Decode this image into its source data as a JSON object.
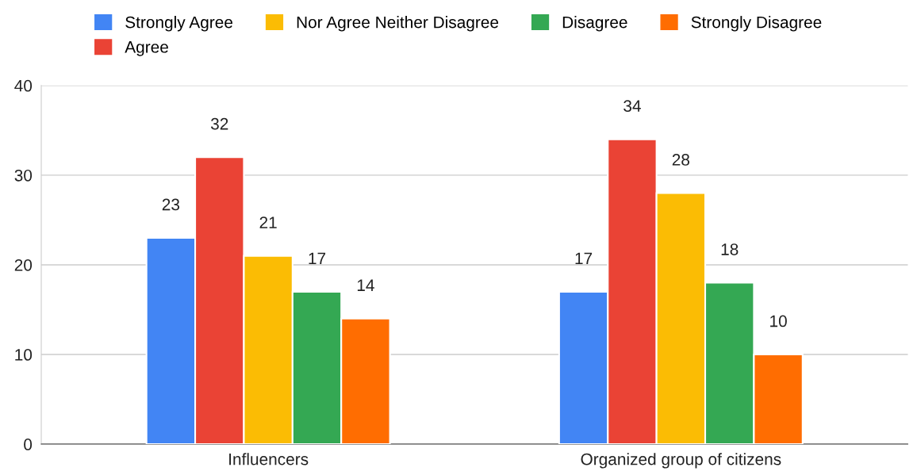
{
  "chart_data": {
    "type": "bar",
    "categories": [
      "Influencers",
      "Organized group of citizens"
    ],
    "series": [
      {
        "name": "Strongly Agree",
        "color": "#4285f4",
        "values": [
          23,
          17
        ]
      },
      {
        "name": "Agree",
        "color": "#ea4335",
        "values": [
          32,
          34
        ]
      },
      {
        "name": "Nor Agree Neither Disagree",
        "color": "#fbbc04",
        "values": [
          21,
          28
        ]
      },
      {
        "name": "Disagree",
        "color": "#34a853",
        "values": [
          17,
          18
        ]
      },
      {
        "name": "Strongly Disagree",
        "color": "#ff6d01",
        "values": [
          14,
          10
        ]
      }
    ],
    "ylim": [
      0,
      40
    ],
    "yticks": [
      0,
      10,
      20,
      30,
      40
    ],
    "grid": "y",
    "legend": "top",
    "data_labels": true
  }
}
